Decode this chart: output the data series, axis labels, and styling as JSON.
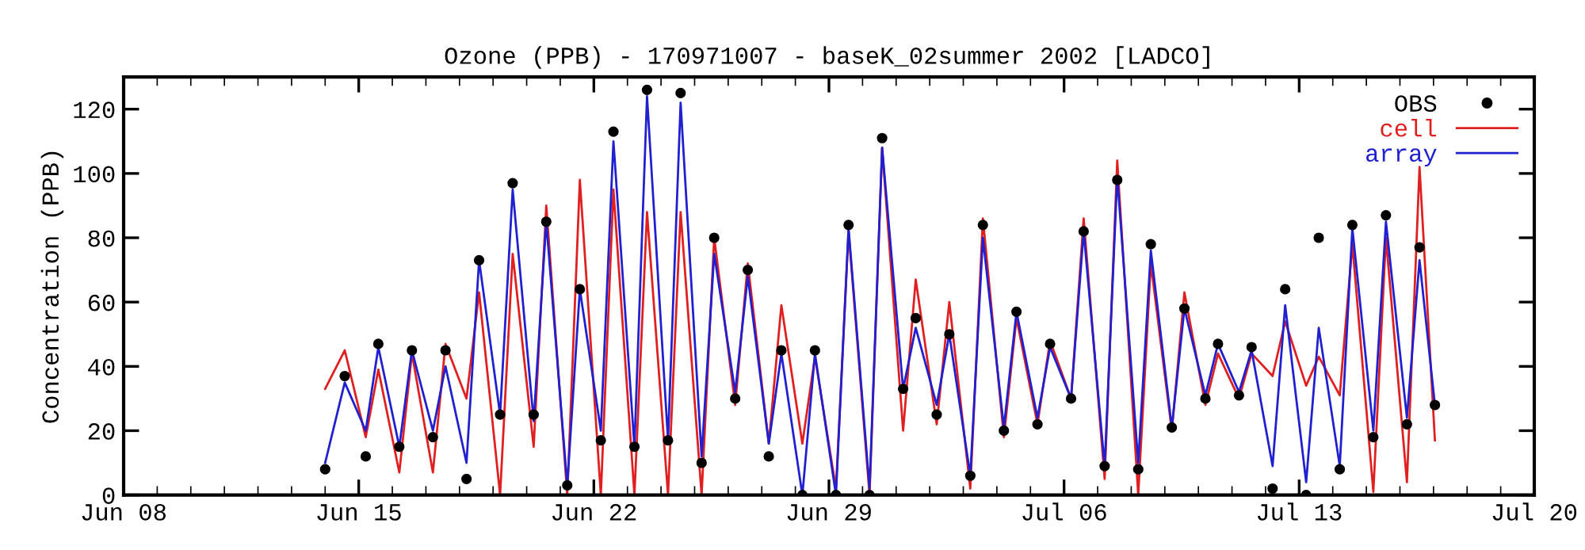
{
  "chart_data": {
    "type": "line",
    "title": "Ozone (PPB) - 170971007 - baseK_02summer 2002 [LADCO]",
    "ylabel": "Concentration (PPB)",
    "x": [
      "2002-06-14T00:00",
      "2002-06-14T14:00",
      "2002-06-15T05:00",
      "2002-06-15T14:00",
      "2002-06-16T05:00",
      "2002-06-16T14:00",
      "2002-06-17T05:00",
      "2002-06-17T14:00",
      "2002-06-18T05:00",
      "2002-06-18T14:00",
      "2002-06-19T05:00",
      "2002-06-19T14:00",
      "2002-06-20T05:00",
      "2002-06-20T14:00",
      "2002-06-21T05:00",
      "2002-06-21T14:00",
      "2002-06-22T05:00",
      "2002-06-22T14:00",
      "2002-06-23T05:00",
      "2002-06-23T14:00",
      "2002-06-24T05:00",
      "2002-06-24T14:00",
      "2002-06-25T05:00",
      "2002-06-25T14:00",
      "2002-06-26T05:00",
      "2002-06-26T14:00",
      "2002-06-27T05:00",
      "2002-06-27T14:00",
      "2002-06-28T05:00",
      "2002-06-28T14:00",
      "2002-06-29T05:00",
      "2002-06-29T14:00",
      "2002-06-30T05:00",
      "2002-06-30T14:00",
      "2002-07-01T05:00",
      "2002-07-01T14:00",
      "2002-07-02T05:00",
      "2002-07-02T14:00",
      "2002-07-03T05:00",
      "2002-07-03T14:00",
      "2002-07-04T05:00",
      "2002-07-04T14:00",
      "2002-07-05T05:00",
      "2002-07-05T14:00",
      "2002-07-06T05:00",
      "2002-07-06T14:00",
      "2002-07-07T05:00",
      "2002-07-07T14:00",
      "2002-07-08T05:00",
      "2002-07-08T14:00",
      "2002-07-09T05:00",
      "2002-07-09T14:00",
      "2002-07-10T05:00",
      "2002-07-10T14:00",
      "2002-07-11T05:00",
      "2002-07-11T14:00",
      "2002-07-12T05:00",
      "2002-07-12T14:00",
      "2002-07-13T05:00",
      "2002-07-13T14:00",
      "2002-07-14T05:00",
      "2002-07-14T14:00",
      "2002-07-15T05:00",
      "2002-07-15T14:00",
      "2002-07-16T05:00",
      "2002-07-16T14:00",
      "2002-07-17T01:00"
    ],
    "series": [
      {
        "name": "OBS",
        "type": "scatter",
        "marker": "circle",
        "color": "#000000",
        "values": [
          8,
          37,
          12,
          47,
          15,
          45,
          18,
          45,
          5,
          73,
          25,
          97,
          25,
          85,
          3,
          64,
          17,
          113,
          15,
          126,
          17,
          125,
          10,
          80,
          30,
          70,
          12,
          45,
          0,
          45,
          0,
          84,
          0,
          111,
          33,
          55,
          25,
          50,
          6,
          84,
          20,
          57,
          22,
          47,
          30,
          82,
          9,
          98,
          8,
          78,
          21,
          58,
          30,
          47,
          31,
          46,
          2,
          64,
          0,
          80,
          8,
          84,
          18,
          87,
          22,
          77,
          28
        ]
      },
      {
        "name": "cell",
        "color": "#e02020",
        "values": [
          33,
          45,
          18,
          39,
          7,
          44,
          7,
          47,
          30,
          63,
          0,
          75,
          15,
          90,
          0,
          98,
          0,
          95,
          0,
          88,
          0,
          88,
          0,
          80,
          28,
          72,
          16,
          59,
          16,
          43,
          2,
          82,
          0,
          108,
          20,
          67,
          22,
          60,
          2,
          86,
          18,
          55,
          22,
          48,
          30,
          86,
          5,
          104,
          0,
          72,
          20,
          63,
          28,
          44,
          30,
          44,
          37,
          54,
          34,
          43,
          31,
          78,
          1,
          80,
          4,
          102,
          17
        ]
      },
      {
        "name": "array",
        "color": "#2020d0",
        "values": [
          10,
          35,
          20,
          46,
          15,
          45,
          20,
          40,
          10,
          73,
          25,
          95,
          23,
          85,
          3,
          64,
          20,
          110,
          15,
          124,
          17,
          122,
          12,
          75,
          32,
          68,
          16,
          44,
          0,
          44,
          0,
          83,
          2,
          108,
          33,
          52,
          28,
          50,
          6,
          80,
          21,
          57,
          24,
          46,
          30,
          82,
          9,
          99,
          10,
          76,
          21,
          58,
          31,
          47,
          32,
          45,
          9,
          59,
          4,
          52,
          9,
          83,
          20,
          85,
          24,
          73,
          28
        ]
      }
    ],
    "xlim": [
      "2002-06-08",
      "2002-07-20"
    ],
    "xticks": [
      {
        "value": "2002-06-08",
        "label": "Jun 08"
      },
      {
        "value": "2002-06-09",
        "label": null
      },
      {
        "value": "2002-06-10",
        "label": null
      },
      {
        "value": "2002-06-11",
        "label": null
      },
      {
        "value": "2002-06-12",
        "label": null
      },
      {
        "value": "2002-06-13",
        "label": null
      },
      {
        "value": "2002-06-14",
        "label": null
      },
      {
        "value": "2002-06-15",
        "label": "Jun 15"
      },
      {
        "value": "2002-06-16",
        "label": null
      },
      {
        "value": "2002-06-17",
        "label": null
      },
      {
        "value": "2002-06-18",
        "label": null
      },
      {
        "value": "2002-06-19",
        "label": null
      },
      {
        "value": "2002-06-20",
        "label": null
      },
      {
        "value": "2002-06-21",
        "label": null
      },
      {
        "value": "2002-06-22",
        "label": "Jun 22"
      },
      {
        "value": "2002-06-23",
        "label": null
      },
      {
        "value": "2002-06-24",
        "label": null
      },
      {
        "value": "2002-06-25",
        "label": null
      },
      {
        "value": "2002-06-26",
        "label": null
      },
      {
        "value": "2002-06-27",
        "label": null
      },
      {
        "value": "2002-06-28",
        "label": null
      },
      {
        "value": "2002-06-29",
        "label": "Jun 29"
      },
      {
        "value": "2002-06-30",
        "label": null
      },
      {
        "value": "2002-07-01",
        "label": null
      },
      {
        "value": "2002-07-02",
        "label": null
      },
      {
        "value": "2002-07-03",
        "label": null
      },
      {
        "value": "2002-07-04",
        "label": null
      },
      {
        "value": "2002-07-05",
        "label": null
      },
      {
        "value": "2002-07-06",
        "label": "Jul 06"
      },
      {
        "value": "2002-07-07",
        "label": null
      },
      {
        "value": "2002-07-08",
        "label": null
      },
      {
        "value": "2002-07-09",
        "label": null
      },
      {
        "value": "2002-07-10",
        "label": null
      },
      {
        "value": "2002-07-11",
        "label": null
      },
      {
        "value": "2002-07-12",
        "label": null
      },
      {
        "value": "2002-07-13",
        "label": "Jul 13"
      },
      {
        "value": "2002-07-14",
        "label": null
      },
      {
        "value": "2002-07-15",
        "label": null
      },
      {
        "value": "2002-07-16",
        "label": null
      },
      {
        "value": "2002-07-17",
        "label": null
      },
      {
        "value": "2002-07-18",
        "label": null
      },
      {
        "value": "2002-07-19",
        "label": null
      },
      {
        "value": "2002-07-20",
        "label": "Jul 20"
      }
    ],
    "ylim": [
      0,
      130
    ],
    "yticks": [
      0,
      20,
      40,
      60,
      80,
      100,
      120
    ],
    "grid": false,
    "legend": "top right"
  }
}
